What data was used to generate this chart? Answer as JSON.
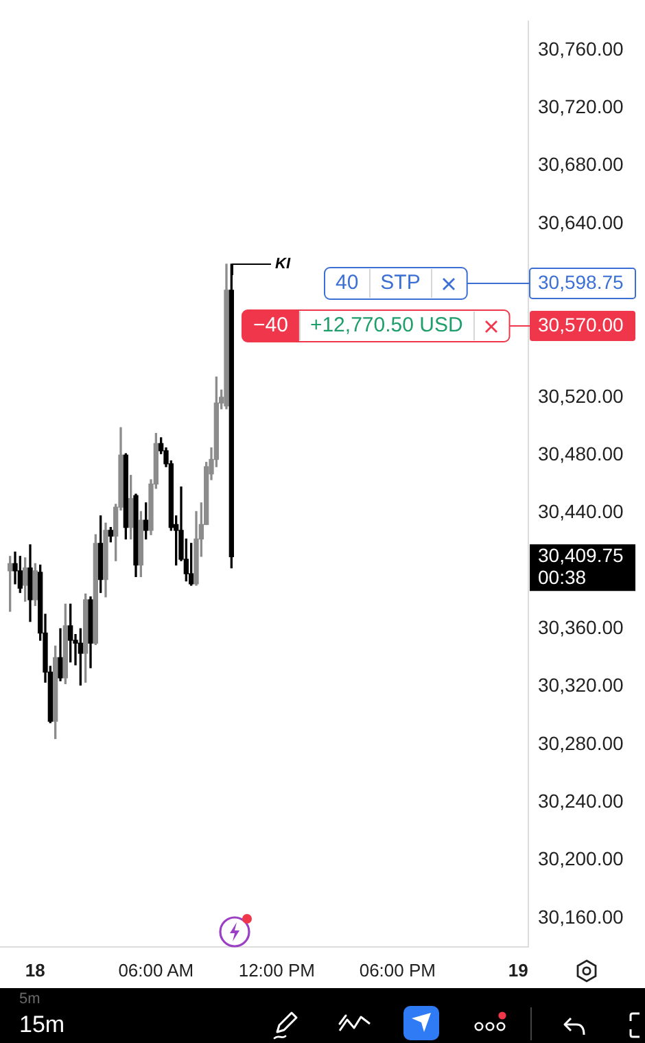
{
  "chart_data": {
    "type": "candlestick",
    "x": [
      "--09-17T22:45",
      "--09-17T23:00",
      "--09-17T23:15",
      "--09-17T23:30",
      "--09-17T23:45",
      "--09-18T00:00",
      "--09-18T00:15",
      "--09-18T00:30",
      "--09-18T00:45",
      "--09-18T01:00",
      "--09-18T01:15",
      "--09-18T01:30",
      "--09-18T01:45",
      "--09-18T02:00",
      "--09-18T02:15",
      "--09-18T02:30",
      "--09-18T02:45",
      "--09-18T03:00",
      "--09-18T03:15",
      "--09-18T03:30",
      "--09-18T03:45",
      "--09-18T04:00",
      "--09-18T04:15",
      "--09-18T04:30",
      "--09-18T04:45",
      "--09-18T05:00",
      "--09-18T05:15",
      "--09-18T05:30",
      "--09-18T05:45",
      "--09-18T06:00",
      "--09-18T06:15",
      "--09-18T06:30",
      "--09-18T06:45",
      "--09-18T07:00",
      "--09-18T07:15",
      "--09-18T07:30",
      "--09-18T07:45",
      "--09-18T08:00",
      "--09-18T08:15",
      "--09-18T08:30",
      "--09-18T08:45",
      "--09-18T09:00",
      "--09-18T09:15",
      "--09-18T09:30",
      "--09-18T09:45"
    ],
    "ohlc": [
      [
        30400,
        30410,
        30372,
        30405
      ],
      [
        30405,
        30413,
        30391,
        30400
      ],
      [
        30400,
        30410,
        30385,
        30388
      ],
      [
        30390,
        30409,
        30379,
        30402
      ],
      [
        30402,
        30418,
        30365,
        30380
      ],
      [
        30380,
        30405,
        30376,
        30400
      ],
      [
        30399,
        30404,
        30352,
        30357
      ],
      [
        30357,
        30370,
        30323,
        30330
      ],
      [
        30330,
        30334,
        30295,
        30296
      ],
      [
        30296,
        30348,
        30284,
        30340
      ],
      [
        30340,
        30360,
        30324,
        30326
      ],
      [
        30326,
        30377,
        30322,
        30362
      ],
      [
        30362,
        30377,
        30337,
        30352
      ],
      [
        30352,
        30356,
        30335,
        30350
      ],
      [
        30350,
        30360,
        30321,
        30343
      ],
      [
        30343,
        30384,
        30323,
        30380
      ],
      [
        30380,
        30382,
        30333,
        30350
      ],
      [
        30350,
        30425,
        30349,
        30419
      ],
      [
        30419,
        30438,
        30385,
        30394
      ],
      [
        30394,
        30433,
        30382,
        30428
      ],
      [
        30428,
        30430,
        30420,
        30424
      ],
      [
        30424,
        30446,
        30407,
        30444
      ],
      [
        30444,
        30499,
        30442,
        30480
      ],
      [
        30480,
        30481,
        30422,
        30430
      ],
      [
        30430,
        30466,
        30422,
        30450
      ],
      [
        30452,
        30453,
        30396,
        30404
      ],
      [
        30404,
        30441,
        30396,
        30435
      ],
      [
        30435,
        30447,
        30422,
        30428
      ],
      [
        30428,
        30463,
        30425,
        30460
      ],
      [
        30460,
        30495,
        30457,
        30488
      ],
      [
        30488,
        30492,
        30481,
        30483
      ],
      [
        30483,
        30485,
        30472,
        30474
      ],
      [
        30474,
        30476,
        30428,
        30430
      ],
      [
        30432,
        30438,
        30404,
        30428
      ],
      [
        30428,
        30458,
        30407,
        30408
      ],
      [
        30408,
        30422,
        30393,
        30398
      ],
      [
        30398,
        30419,
        30390,
        30391
      ],
      [
        30391,
        30441,
        30390,
        30422
      ],
      [
        30422,
        30447,
        30410,
        30432
      ],
      [
        30432,
        30475,
        30432,
        30472
      ],
      [
        30467,
        30485,
        30463,
        30477
      ],
      [
        30477,
        30534,
        30472,
        30516
      ],
      [
        30516,
        30525,
        30512,
        30520
      ],
      [
        30514,
        30612,
        30512,
        30594
      ],
      [
        30594,
        30612,
        30402,
        30409.75
      ]
    ],
    "colors": [
      "#8c8c8c",
      "#000000",
      "#000000",
      "#8c8c8c",
      "#000000",
      "#8c8c8c",
      "#000000",
      "#000000",
      "#000000",
      "#8c8c8c",
      "#000000",
      "#8c8c8c",
      "#000000",
      "#000000",
      "#000000",
      "#8c8c8c",
      "#000000",
      "#8c8c8c",
      "#000000",
      "#8c8c8c",
      "#000000",
      "#8c8c8c",
      "#8c8c8c",
      "#000000",
      "#8c8c8c",
      "#000000",
      "#8c8c8c",
      "#000000",
      "#8c8c8c",
      "#8c8c8c",
      "#000000",
      "#000000",
      "#000000",
      "#000000",
      "#000000",
      "#000000",
      "#000000",
      "#8c8c8c",
      "#8c8c8c",
      "#8c8c8c",
      "#8c8c8c",
      "#8c8c8c",
      "#8c8c8c",
      "#8c8c8c",
      "#000000"
    ],
    "xlim": [
      "--09-17T22:15",
      "--09-19T00:30"
    ],
    "xticks": [
      {
        "value": "--09-18",
        "label": "18"
      },
      {
        "value": "--09-18T06:00",
        "label": "06:00 AM"
      },
      {
        "value": "--09-18T12:00",
        "label": "12:00 PM"
      },
      {
        "value": "--09-18T18:00",
        "label": "06:00 PM"
      },
      {
        "value": "--09-19",
        "label": "19"
      }
    ],
    "ylim": [
      30140,
      30780
    ],
    "yticks": [
      {
        "value": 30160,
        "label": "30,160.00"
      },
      {
        "value": 30200,
        "label": "30,200.00"
      },
      {
        "value": 30240,
        "label": "30,240.00"
      },
      {
        "value": 30280,
        "label": "30,280.00"
      },
      {
        "value": 30320,
        "label": "30,320.00"
      },
      {
        "value": 30360,
        "label": "30,360.00"
      },
      {
        "value": 30440,
        "label": "30,440.00"
      },
      {
        "value": 30480,
        "label": "30,480.00"
      },
      {
        "value": 30520,
        "label": "30,520.00"
      },
      {
        "value": 30640,
        "label": "30,640.00"
      },
      {
        "value": 30680,
        "label": "30,680.00"
      },
      {
        "value": 30720,
        "label": "30,720.00"
      },
      {
        "value": 30760,
        "label": "30,760.00"
      }
    ],
    "grid": false,
    "ref_lines": [
      {
        "axis": "y",
        "value": 30598.75,
        "label": "30,598.75",
        "color": "#3b6fd4"
      },
      {
        "axis": "y",
        "value": 30570,
        "label": "30,570.00",
        "color": "#f0364a"
      }
    ],
    "annotations": [
      {
        "text": "KI",
        "x": "--09-18T09:45",
        "y": 30612
      },
      "40",
      "STP",
      "−40",
      "+12,770.50 USD",
      "30,409.75",
      "00:38",
      "5m",
      "15m"
    ]
  }
}
